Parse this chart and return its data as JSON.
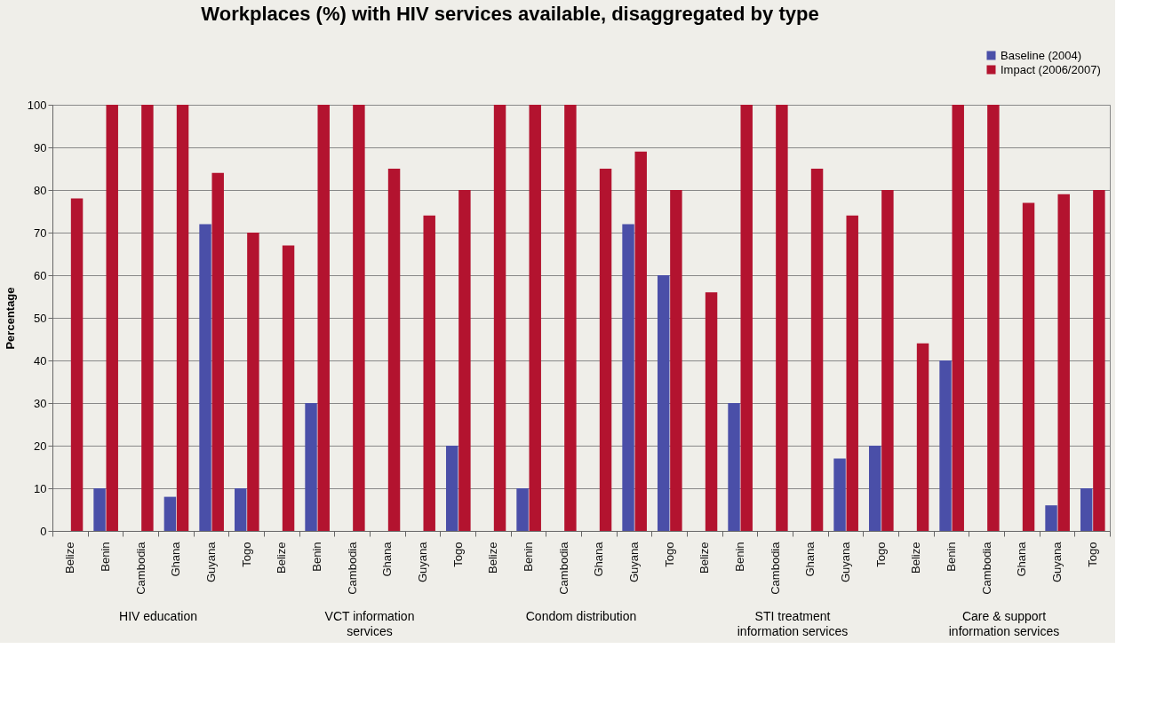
{
  "chart_data": {
    "type": "bar",
    "title": "Workplaces (%) with HIV services available, disaggregated by type",
    "ylabel": "Percentage",
    "categories": [
      "Belize",
      "Benin",
      "Cambodia",
      "Ghana",
      "Guyana",
      "Togo",
      "Belize",
      "Benin",
      "Cambodia",
      "Ghana",
      "Guyana",
      "Togo",
      "Belize",
      "Benin",
      "Cambodia",
      "Ghana",
      "Guyana",
      "Togo",
      "Belize",
      "Benin",
      "Cambodia",
      "Ghana",
      "Guyana",
      "Togo",
      "Belize",
      "Benin",
      "Cambodia",
      "Ghana",
      "Guyana",
      "Togo"
    ],
    "series": [
      {
        "name": "Baseline (2004)",
        "color": "#4a4fa8",
        "values": [
          0,
          10,
          0,
          8,
          72,
          10,
          0,
          30,
          0,
          0,
          0,
          20,
          0,
          10,
          0,
          0,
          72,
          60,
          0,
          30,
          0,
          0,
          17,
          20,
          0,
          40,
          0,
          0,
          6,
          10
        ]
      },
      {
        "name": "Impact (2006/2007)",
        "color": "#b3132f",
        "values": [
          78,
          100,
          100,
          100,
          84,
          70,
          67,
          100,
          100,
          85,
          74,
          80,
          100,
          100,
          100,
          85,
          89,
          80,
          56,
          100,
          100,
          85,
          74,
          80,
          44,
          100,
          100,
          77,
          79,
          80
        ]
      }
    ],
    "annotations": [
      "HIV education",
      "VCT information services",
      "Condom distribution",
      "STI treatment information services",
      "Care & support information services"
    ],
    "ylim": [
      0,
      100
    ],
    "yticks": [
      0,
      10,
      20,
      30,
      40,
      50,
      60,
      70,
      80,
      90,
      100
    ],
    "grid": "y",
    "legend": "top right"
  }
}
